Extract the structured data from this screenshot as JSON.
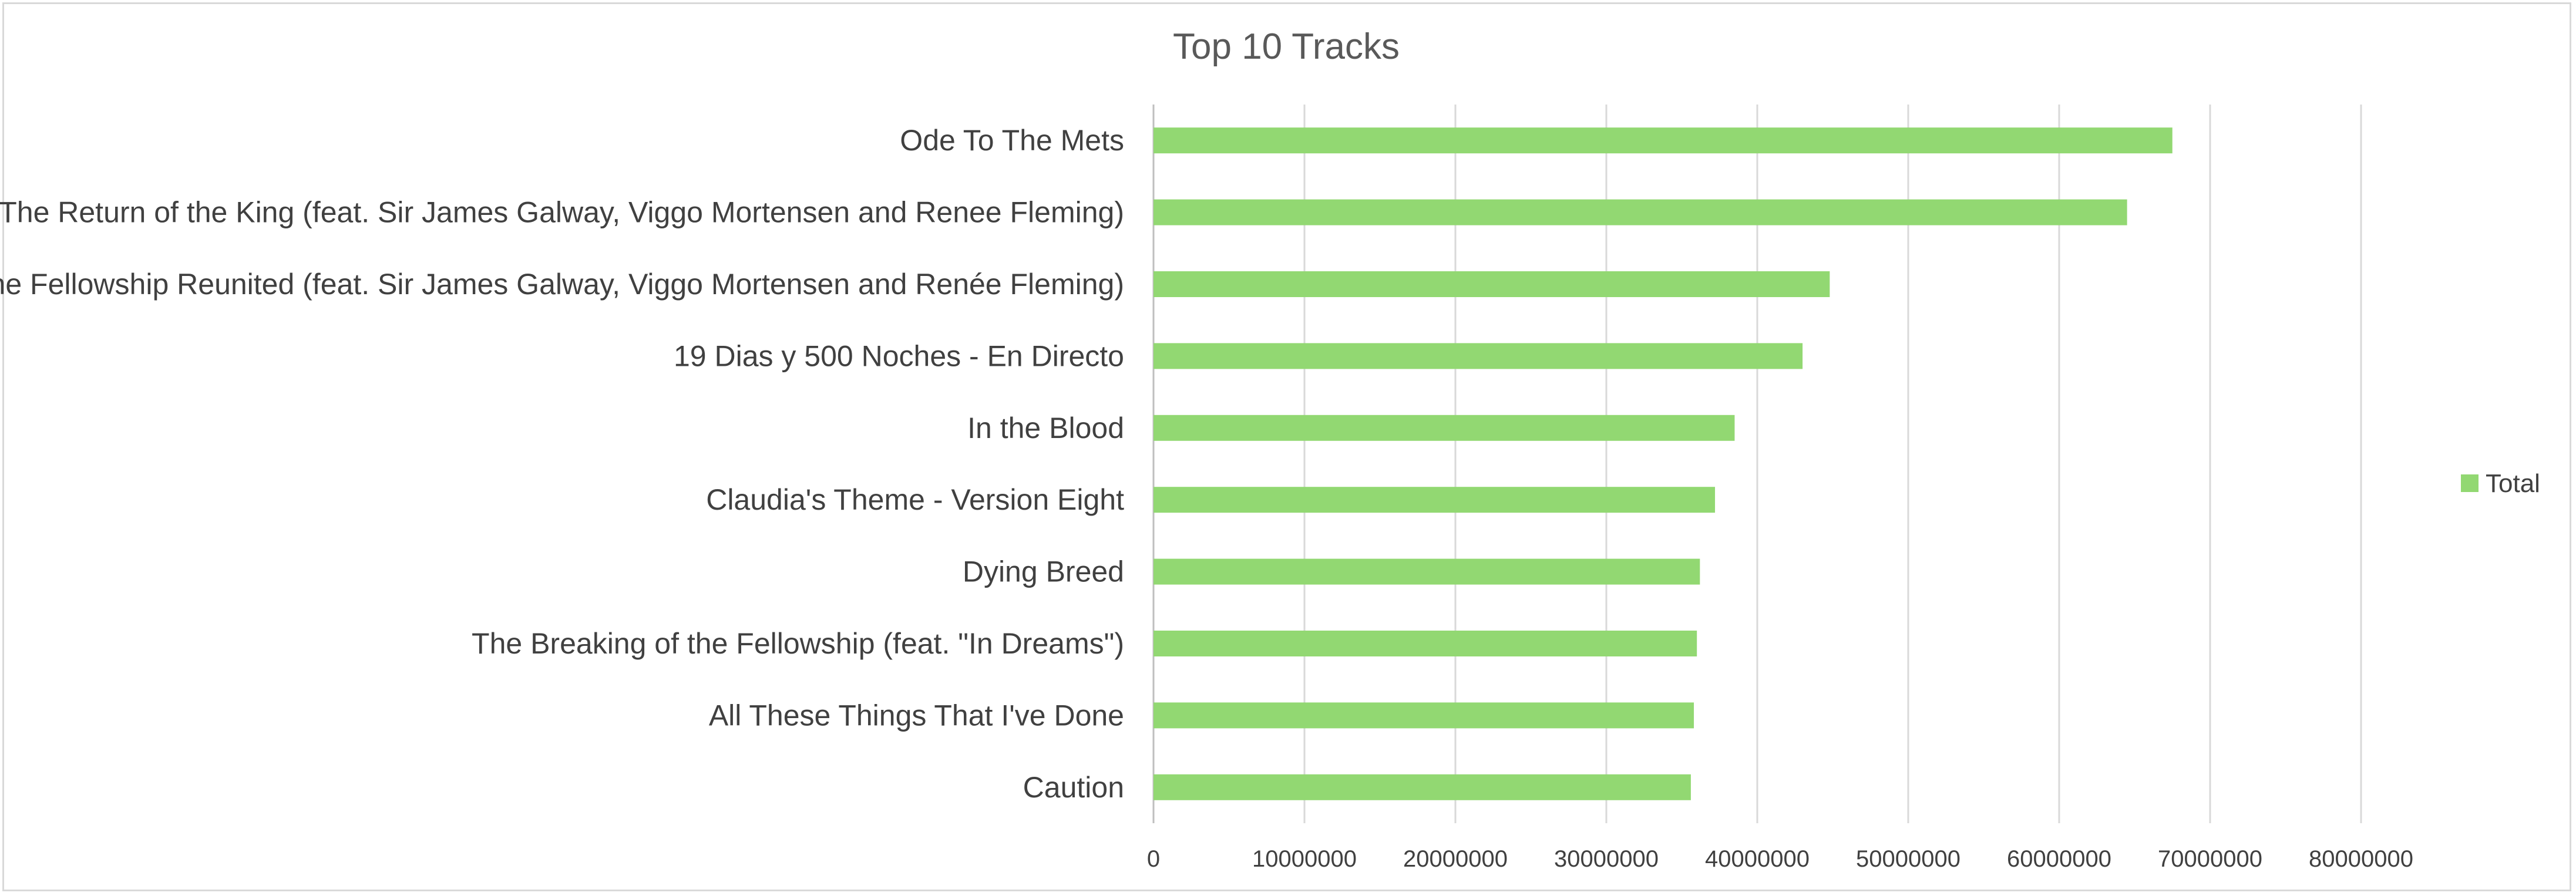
{
  "chart_data": {
    "type": "bar",
    "orientation": "horizontal",
    "title": "Top 10 Tracks",
    "categories": [
      "Ode To The Mets",
      "The Return of the King (feat. Sir James Galway, Viggo Mortensen and Renee Fleming)",
      "The Fellowship Reunited (feat. Sir James Galway, Viggo Mortensen and Renée Fleming)",
      "19 Dias y 500 Noches - En Directo",
      "In the Blood",
      "Claudia's Theme - Version Eight",
      "Dying Breed",
      "The Breaking of the Fellowship (feat. \"In Dreams\")",
      "All These Things That I've Done",
      "Caution"
    ],
    "series": [
      {
        "name": "Total",
        "color": "#92d872",
        "values": [
          67500000,
          64500000,
          44800000,
          43000000,
          38500000,
          37200000,
          36200000,
          36000000,
          35800000,
          35600000
        ]
      }
    ],
    "xlim": [
      0,
      80000000
    ],
    "ticks": [
      "0",
      "10000000",
      "20000000",
      "30000000",
      "40000000",
      "50000000",
      "60000000",
      "70000000",
      "80000000"
    ],
    "grid": true,
    "legend_position": "right"
  }
}
